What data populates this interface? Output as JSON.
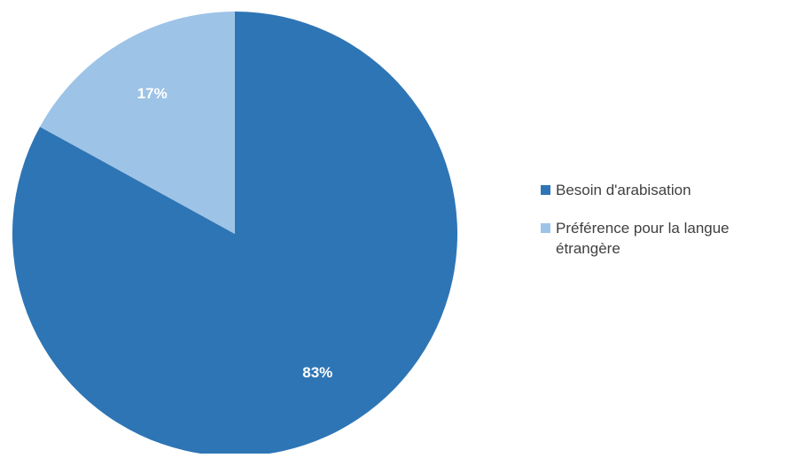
{
  "chart_data": {
    "type": "pie",
    "title": "",
    "legend_position": "right",
    "slices": [
      {
        "label": "Besoin d'arabisation",
        "value": 83,
        "display": "83%",
        "color": "#2e75b6"
      },
      {
        "label": "Préférence pour la langue étrangère",
        "value": 17,
        "display": "17%",
        "color": "#9dc3e6"
      }
    ]
  }
}
